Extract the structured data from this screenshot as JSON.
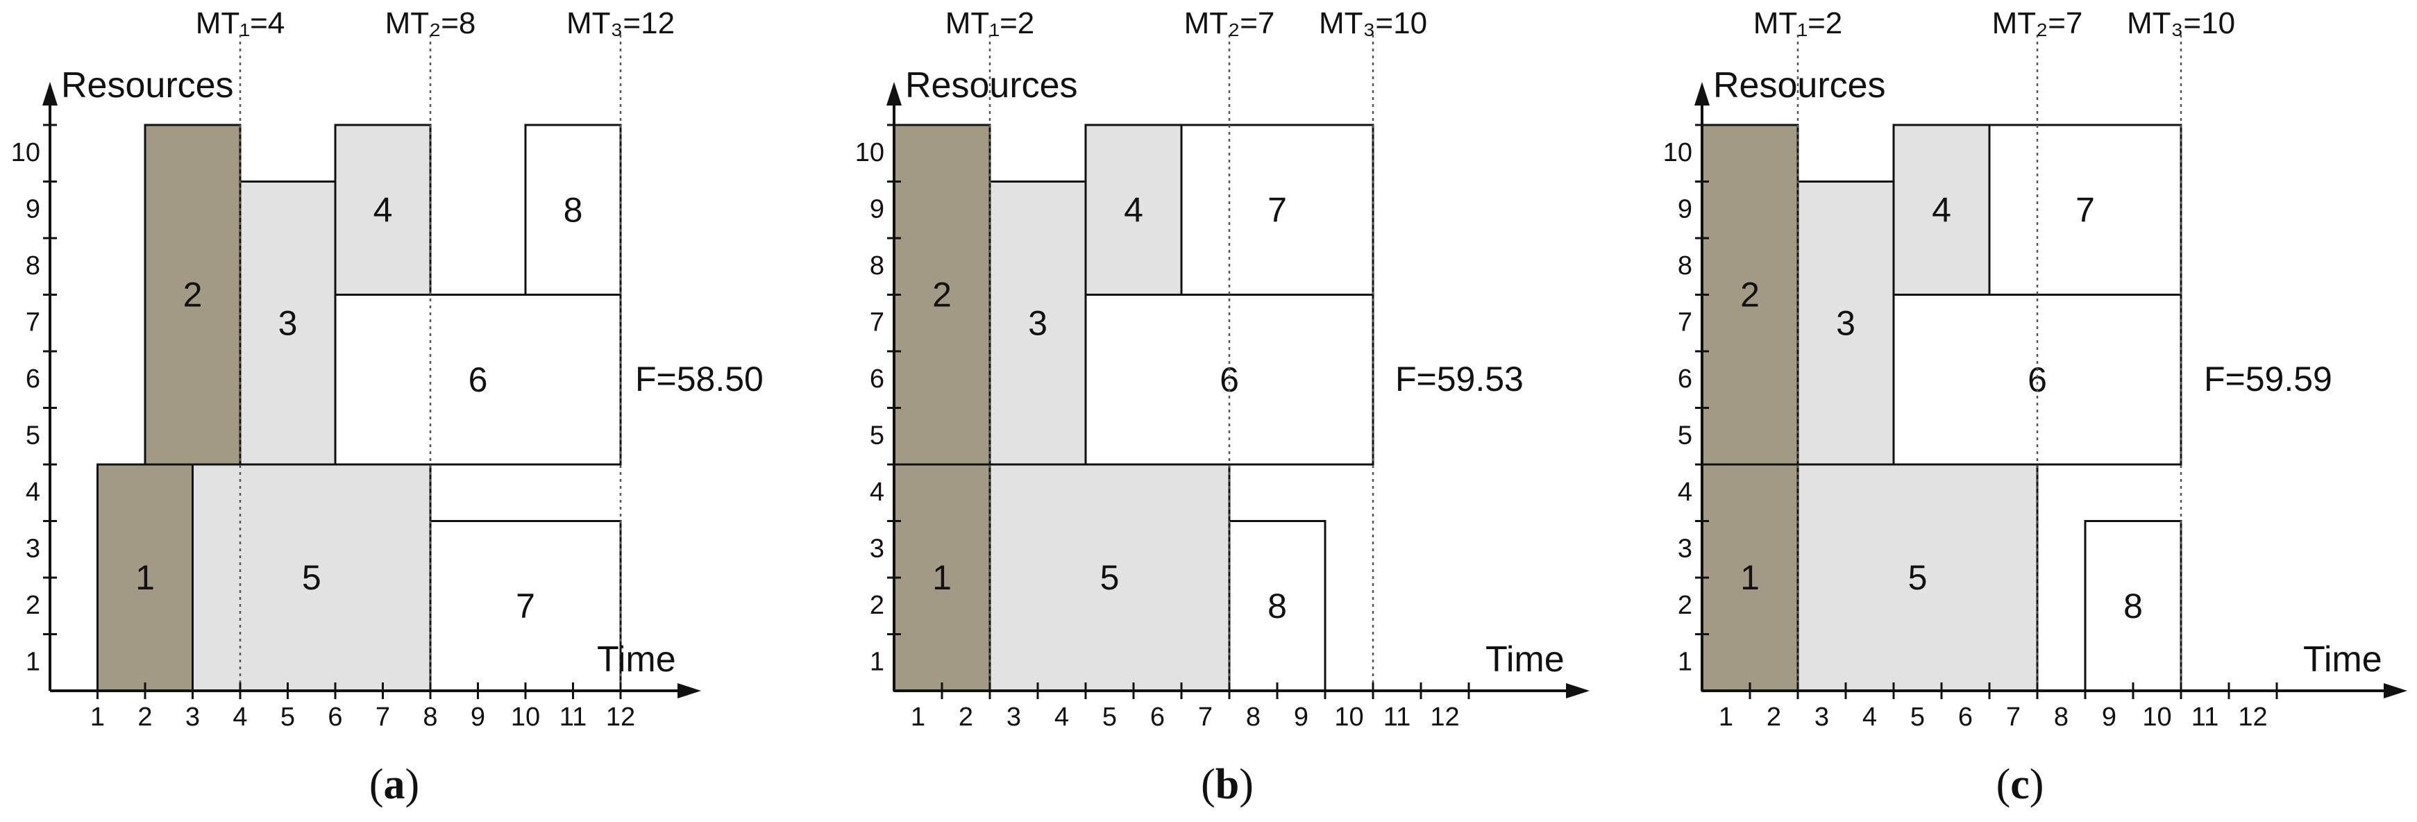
{
  "colors": {
    "dark_task": "#a29a84",
    "light_task": "#e2e2e2",
    "white_task": "#ffffff",
    "axis": "#111111",
    "milestone_line": "#555555"
  },
  "axis_titles": {
    "resources": "Resources",
    "time": "Time"
  },
  "x_ticks": [
    "1",
    "2",
    "3",
    "4",
    "5",
    "6",
    "7",
    "8",
    "9",
    "10",
    "11",
    "12"
  ],
  "y_ticks": [
    "1",
    "2",
    "3",
    "4",
    "5",
    "6",
    "7",
    "8",
    "9",
    "10"
  ],
  "panels": [
    {
      "caption": "(a)",
      "caption_letter": "a",
      "milestones": [
        {
          "label": "MT₁=4",
          "time": 4
        },
        {
          "label": "MT₂=8",
          "time": 8
        },
        {
          "label": "MT₃=12",
          "time": 12
        }
      ],
      "f_value": "F=58.50",
      "tasks": [
        {
          "id": "1",
          "start": 1,
          "end": 3,
          "res_lo": 0,
          "res_hi": 4,
          "fill": "dark"
        },
        {
          "id": "2",
          "start": 2,
          "end": 4,
          "res_lo": 4,
          "res_hi": 10,
          "fill": "dark"
        },
        {
          "id": "3",
          "start": 4,
          "end": 6,
          "res_lo": 4,
          "res_hi": 9,
          "fill": "light"
        },
        {
          "id": "4",
          "start": 6,
          "end": 8,
          "res_lo": 7,
          "res_hi": 10,
          "fill": "light"
        },
        {
          "id": "5",
          "start": 3,
          "end": 8,
          "res_lo": 0,
          "res_hi": 4,
          "fill": "light"
        },
        {
          "id": "6",
          "start": 6,
          "end": 12,
          "res_lo": 4,
          "res_hi": 7,
          "fill": "white"
        },
        {
          "id": "7",
          "start": 8,
          "end": 12,
          "res_lo": 0,
          "res_hi": 3,
          "fill": "white"
        },
        {
          "id": "8",
          "start": 10,
          "end": 12,
          "res_lo": 7,
          "res_hi": 10,
          "fill": "white"
        }
      ]
    },
    {
      "caption": "(b)",
      "caption_letter": "b",
      "milestones": [
        {
          "label": "MT₁=2",
          "time": 2
        },
        {
          "label": "MT₂=7",
          "time": 7
        },
        {
          "label": "MT₃=10",
          "time": 10
        }
      ],
      "f_value": "F=59.53",
      "tasks": [
        {
          "id": "1",
          "start": 0,
          "end": 2,
          "res_lo": 0,
          "res_hi": 4,
          "fill": "dark"
        },
        {
          "id": "2",
          "start": 0,
          "end": 2,
          "res_lo": 4,
          "res_hi": 10,
          "fill": "dark"
        },
        {
          "id": "3",
          "start": 2,
          "end": 4,
          "res_lo": 4,
          "res_hi": 9,
          "fill": "light"
        },
        {
          "id": "4",
          "start": 4,
          "end": 6,
          "res_lo": 7,
          "res_hi": 10,
          "fill": "light"
        },
        {
          "id": "5",
          "start": 2,
          "end": 7,
          "res_lo": 0,
          "res_hi": 4,
          "fill": "light"
        },
        {
          "id": "6",
          "start": 4,
          "end": 10,
          "res_lo": 4,
          "res_hi": 7,
          "fill": "white"
        },
        {
          "id": "7",
          "start": 6,
          "end": 10,
          "res_lo": 7,
          "res_hi": 10,
          "fill": "white"
        },
        {
          "id": "8",
          "start": 7,
          "end": 9,
          "res_lo": 0,
          "res_hi": 3,
          "fill": "white"
        }
      ]
    },
    {
      "caption": "(c)",
      "caption_letter": "c",
      "milestones": [
        {
          "label": "MT₁=2",
          "time": 2
        },
        {
          "label": "MT₂=7",
          "time": 7
        },
        {
          "label": "MT₃=10",
          "time": 10
        }
      ],
      "f_value": "F=59.59",
      "tasks": [
        {
          "id": "1",
          "start": 0,
          "end": 2,
          "res_lo": 0,
          "res_hi": 4,
          "fill": "dark"
        },
        {
          "id": "2",
          "start": 0,
          "end": 2,
          "res_lo": 4,
          "res_hi": 10,
          "fill": "dark"
        },
        {
          "id": "3",
          "start": 2,
          "end": 4,
          "res_lo": 4,
          "res_hi": 9,
          "fill": "light"
        },
        {
          "id": "4",
          "start": 4,
          "end": 6,
          "res_lo": 7,
          "res_hi": 10,
          "fill": "light"
        },
        {
          "id": "5",
          "start": 2,
          "end": 7,
          "res_lo": 0,
          "res_hi": 4,
          "fill": "light"
        },
        {
          "id": "6",
          "start": 4,
          "end": 10,
          "res_lo": 4,
          "res_hi": 7,
          "fill": "white"
        },
        {
          "id": "7",
          "start": 6,
          "end": 10,
          "res_lo": 7,
          "res_hi": 10,
          "fill": "white"
        },
        {
          "id": "8",
          "start": 8,
          "end": 10,
          "res_lo": 0,
          "res_hi": 3,
          "fill": "white"
        }
      ]
    }
  ]
}
